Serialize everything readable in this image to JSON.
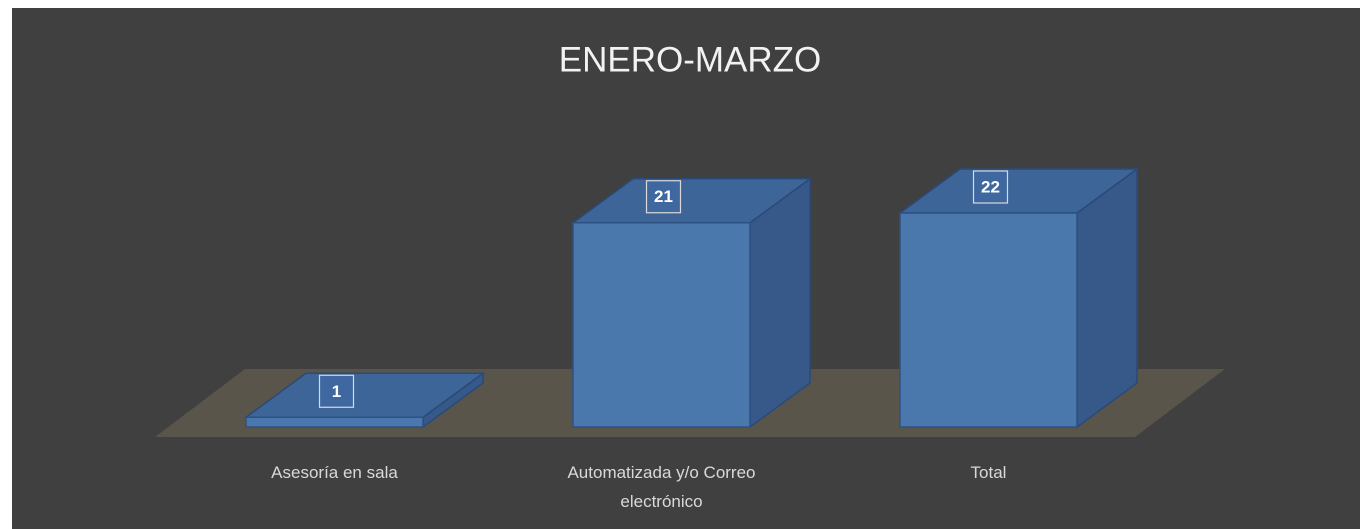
{
  "chart_data": {
    "type": "bar3d",
    "title": "ENERO-MARZO",
    "categories": [
      "Asesoría en sala",
      "Automatizada y/o Correo electrónico",
      "Total"
    ],
    "values": [
      1,
      21,
      22
    ],
    "color": "#4a78ad"
  }
}
